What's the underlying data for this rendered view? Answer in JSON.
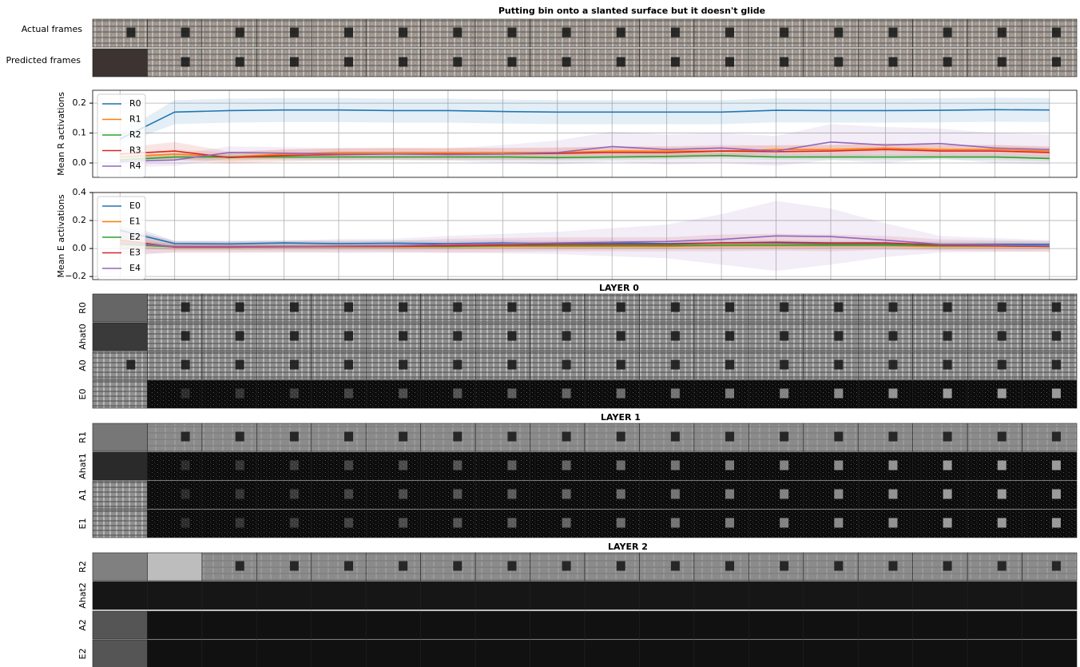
{
  "title": "Putting bin onto a slanted surface but it doesn't glide",
  "frame_rows": [
    "Actual frames",
    "Predicted frames"
  ],
  "chart_data": [
    {
      "type": "line",
      "ylabel": "Mean R activations",
      "xlim": [
        -0.5,
        17.5
      ],
      "xticks": [
        0,
        1,
        2,
        3,
        4,
        5,
        6,
        7,
        8,
        9,
        10,
        11,
        12,
        13,
        14,
        15,
        16,
        17
      ],
      "ylim": [
        -0.048,
        0.243
      ],
      "yticks": [
        {
          "value": 0,
          "label": "0.0"
        },
        0.1,
        0.2
      ],
      "grid": true,
      "legend": "upper left",
      "series": [
        {
          "name": "R0",
          "color": "#1f77b4",
          "values": [
            0.08,
            0.17,
            0.175,
            0.177,
            0.177,
            0.175,
            0.175,
            0.172,
            0.17,
            0.17,
            0.17,
            0.17,
            0.176,
            0.175,
            0.175,
            0.176,
            0.178,
            0.177
          ],
          "std": [
            0.02,
            0.04,
            0.04,
            0.04,
            0.04,
            0.04,
            0.04,
            0.04,
            0.04,
            0.04,
            0.04,
            0.04,
            0.04,
            0.04,
            0.04,
            0.04,
            0.04,
            0.04
          ]
        },
        {
          "name": "R1",
          "color": "#ff7f0e",
          "values": [
            0.02,
            0.03,
            0.02,
            0.03,
            0.035,
            0.035,
            0.035,
            0.035,
            0.035,
            0.04,
            0.04,
            0.04,
            0.045,
            0.045,
            0.05,
            0.045,
            0.045,
            0.04
          ],
          "std": [
            0.01,
            0.015,
            0.015,
            0.015,
            0.015,
            0.015,
            0.015,
            0.015,
            0.015,
            0.015,
            0.015,
            0.015,
            0.015,
            0.015,
            0.015,
            0.015,
            0.015,
            0.015
          ]
        },
        {
          "name": "R2",
          "color": "#2ca02c",
          "values": [
            0.01,
            0.02,
            0.02,
            0.02,
            0.02,
            0.02,
            0.02,
            0.02,
            0.018,
            0.02,
            0.022,
            0.025,
            0.02,
            0.02,
            0.02,
            0.02,
            0.02,
            0.015
          ],
          "std": [
            0.01,
            0.01,
            0.01,
            0.01,
            0.01,
            0.01,
            0.01,
            0.01,
            0.01,
            0.01,
            0.01,
            0.01,
            0.01,
            0.01,
            0.01,
            0.01,
            0.01,
            0.01
          ]
        },
        {
          "name": "R3",
          "color": "#d62728",
          "values": [
            0.03,
            0.04,
            0.018,
            0.025,
            0.028,
            0.03,
            0.03,
            0.03,
            0.032,
            0.035,
            0.035,
            0.04,
            0.038,
            0.04,
            0.045,
            0.04,
            0.04,
            0.035
          ],
          "std": [
            0.02,
            0.03,
            0.02,
            0.02,
            0.02,
            0.02,
            0.02,
            0.02,
            0.02,
            0.02,
            0.02,
            0.02,
            0.02,
            0.02,
            0.02,
            0.02,
            0.02,
            0.02
          ]
        },
        {
          "name": "R4",
          "color": "#9467bd",
          "values": [
            0.005,
            0.01,
            0.035,
            0.033,
            0.03,
            0.03,
            0.028,
            0.03,
            0.035,
            0.055,
            0.045,
            0.05,
            0.04,
            0.07,
            0.06,
            0.065,
            0.05,
            0.045
          ],
          "std": [
            0.02,
            0.02,
            0.02,
            0.02,
            0.02,
            0.02,
            0.02,
            0.03,
            0.04,
            0.05,
            0.05,
            0.05,
            0.05,
            0.06,
            0.06,
            0.05,
            0.05,
            0.05
          ]
        }
      ]
    },
    {
      "type": "line",
      "ylabel": "Mean E activations",
      "xlim": [
        -0.5,
        17.5
      ],
      "xticks": [
        0,
        1,
        2,
        3,
        4,
        5,
        6,
        7,
        8,
        9,
        10,
        11,
        12,
        13,
        14,
        15,
        16,
        17
      ],
      "ylim": [
        -0.222,
        0.4
      ],
      "yticks": [
        {
          "value": -0.2,
          "label": "−0.2"
        },
        {
          "value": 0,
          "label": "0.0"
        },
        0.2,
        0.4
      ],
      "grid": true,
      "legend": "upper left",
      "series": [
        {
          "name": "E0",
          "color": "#1f77b4",
          "values": [
            0.13,
            0.035,
            0.033,
            0.04,
            0.035,
            0.038,
            0.035,
            0.04,
            0.035,
            0.04,
            0.035,
            0.04,
            0.04,
            0.035,
            0.035,
            0.03,
            0.03,
            0.03
          ],
          "std": [
            0.06,
            0.02,
            0.02,
            0.02,
            0.02,
            0.02,
            0.02,
            0.02,
            0.02,
            0.02,
            0.02,
            0.02,
            0.02,
            0.02,
            0.02,
            0.02,
            0.02,
            0.02
          ]
        },
        {
          "name": "E1",
          "color": "#ff7f0e",
          "values": [
            0.05,
            0.01,
            0.01,
            0.012,
            0.012,
            0.012,
            0.012,
            0.015,
            0.015,
            0.015,
            0.015,
            0.02,
            0.02,
            0.02,
            0.02,
            0.015,
            0.015,
            0.015
          ],
          "std": [
            0.04,
            0.02,
            0.02,
            0.02,
            0.02,
            0.02,
            0.02,
            0.02,
            0.02,
            0.02,
            0.02,
            0.02,
            0.02,
            0.02,
            0.02,
            0.02,
            0.02,
            0.02
          ]
        },
        {
          "name": "E2",
          "color": "#2ca02c",
          "values": [
            0.03,
            0.012,
            0.012,
            0.015,
            0.015,
            0.015,
            0.015,
            0.02,
            0.02,
            0.02,
            0.02,
            0.025,
            0.025,
            0.025,
            0.025,
            0.02,
            0.02,
            0.015
          ],
          "std": [
            0.03,
            0.02,
            0.02,
            0.02,
            0.02,
            0.02,
            0.02,
            0.02,
            0.02,
            0.02,
            0.02,
            0.02,
            0.02,
            0.02,
            0.02,
            0.02,
            0.02,
            0.02
          ]
        },
        {
          "name": "E3",
          "color": "#d62728",
          "values": [
            0.06,
            0.01,
            0.01,
            0.012,
            0.015,
            0.015,
            0.02,
            0.025,
            0.03,
            0.03,
            0.03,
            0.04,
            0.045,
            0.04,
            0.04,
            0.025,
            0.02,
            0.015
          ],
          "std": [
            0.1,
            0.04,
            0.04,
            0.04,
            0.04,
            0.04,
            0.05,
            0.05,
            0.05,
            0.05,
            0.05,
            0.06,
            0.06,
            0.06,
            0.05,
            0.04,
            0.04,
            0.04
          ]
        },
        {
          "name": "E4",
          "color": "#9467bd",
          "values": [
            0.04,
            0.015,
            0.015,
            0.015,
            0.018,
            0.02,
            0.03,
            0.035,
            0.04,
            0.045,
            0.05,
            0.065,
            0.09,
            0.085,
            0.06,
            0.03,
            0.025,
            0.02
          ],
          "std": [
            0.1,
            0.04,
            0.04,
            0.04,
            0.05,
            0.05,
            0.06,
            0.07,
            0.08,
            0.1,
            0.12,
            0.18,
            0.25,
            0.2,
            0.12,
            0.06,
            0.05,
            0.04
          ]
        }
      ]
    }
  ],
  "layers": [
    {
      "title": "LAYER 0",
      "rows": [
        "R0",
        "Ahat0",
        "A0",
        "E0"
      ]
    },
    {
      "title": "LAYER 1",
      "rows": [
        "R1",
        "Ahat1",
        "A1",
        "E1"
      ]
    },
    {
      "title": "LAYER 2",
      "rows": [
        "R2",
        "Ahat2",
        "A2",
        "E2"
      ]
    }
  ]
}
